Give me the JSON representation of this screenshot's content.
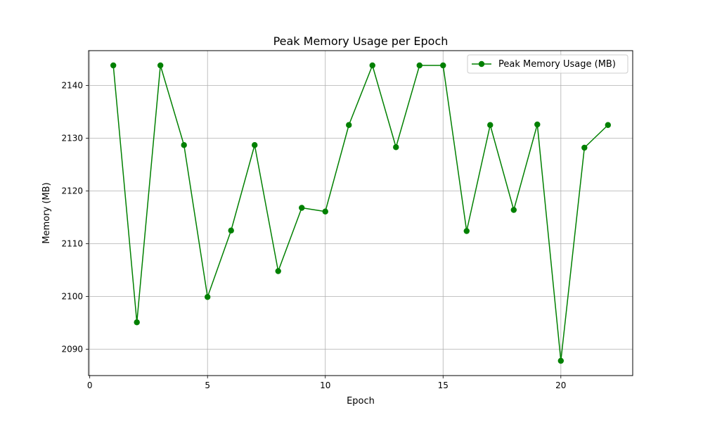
{
  "chart_data": {
    "type": "line",
    "title": "Peak Memory Usage per Epoch",
    "xlabel": "Epoch",
    "ylabel": "Memory (MB)",
    "xlim": [
      -0.05,
      23.05
    ],
    "ylim": [
      2085,
      2146.6
    ],
    "xticks": [
      0,
      5,
      10,
      15,
      20
    ],
    "yticks": [
      2090,
      2100,
      2110,
      2120,
      2130,
      2140
    ],
    "grid": true,
    "legend_position": "top-right",
    "series": [
      {
        "name": "Peak Memory Usage (MB)",
        "color": "#008000",
        "marker": "circle",
        "x": [
          1,
          2,
          3,
          4,
          5,
          6,
          7,
          8,
          9,
          10,
          11,
          12,
          13,
          14,
          15,
          16,
          17,
          18,
          19,
          20,
          21,
          22
        ],
        "y": [
          2143.8,
          2095.1,
          2143.8,
          2128.7,
          2099.9,
          2112.5,
          2128.7,
          2104.8,
          2116.8,
          2116.1,
          2132.5,
          2143.8,
          2128.3,
          2143.8,
          2143.8,
          2112.4,
          2132.5,
          2116.4,
          2132.6,
          2087.8,
          2128.2,
          2132.5
        ]
      }
    ]
  }
}
